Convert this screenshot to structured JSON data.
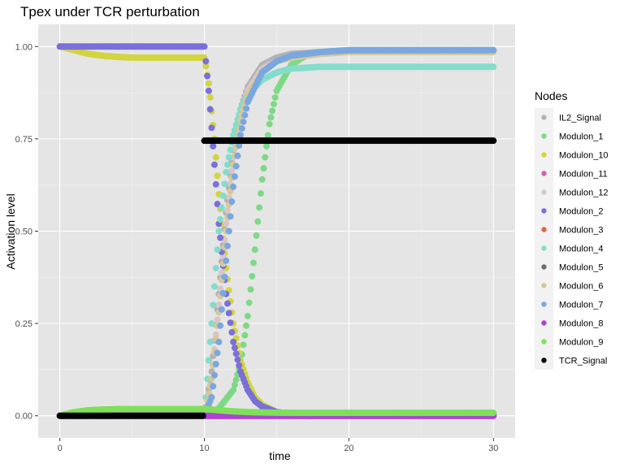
{
  "chart_data": {
    "type": "scatter",
    "title": "Tpex under TCR perturbation",
    "xlabel": "time",
    "ylabel": "Activation level",
    "xlim": [
      -1.5,
      31.5
    ],
    "ylim": [
      -0.06,
      1.06
    ],
    "x_ticks": [
      0,
      10,
      20,
      30
    ],
    "x_tick_labels": [
      "0",
      "10",
      "20",
      "30"
    ],
    "y_ticks": [
      0,
      0.25,
      0.5,
      0.75,
      1.0
    ],
    "y_tick_labels": [
      "0.00",
      "0.25",
      "0.50",
      "0.75",
      "1.00"
    ],
    "grid": true,
    "background": "#e5e5e5",
    "legend": {
      "title": "Nodes",
      "position": "right",
      "entries": [
        "IL2_Signal",
        "Modulon_1",
        "Modulon_10",
        "Modulon_11",
        "Modulon_12",
        "Modulon_2",
        "Modulon_3",
        "Modulon_4",
        "Modulon_5",
        "Modulon_6",
        "Modulon_7",
        "Modulon_8",
        "Modulon_9",
        "TCR_Signal"
      ]
    },
    "series": [
      {
        "name": "IL2_Signal",
        "color": "#b3b3b3",
        "x": [
          0,
          2,
          4,
          6,
          8,
          10,
          10.5,
          11,
          11.5,
          12,
          12.5,
          13,
          14,
          15,
          16,
          18,
          20,
          25,
          30
        ],
        "y": [
          0,
          0,
          0,
          0,
          0,
          0,
          0.12,
          0.33,
          0.55,
          0.72,
          0.83,
          0.89,
          0.95,
          0.97,
          0.98,
          0.985,
          0.99,
          0.99,
          0.99
        ]
      },
      {
        "name": "Modulon_1",
        "color": "#7ed987",
        "x": [
          0,
          2,
          4,
          6,
          8,
          10,
          11,
          12,
          12.5,
          13,
          13.5,
          14,
          14.5,
          15,
          16,
          17,
          18,
          20,
          25,
          30
        ],
        "y": [
          0,
          0,
          0,
          0,
          0,
          0,
          0.02,
          0.07,
          0.14,
          0.27,
          0.45,
          0.64,
          0.79,
          0.88,
          0.95,
          0.975,
          0.985,
          0.99,
          0.99,
          0.99
        ]
      },
      {
        "name": "Modulon_10",
        "color": "#d3d43f",
        "x": [
          0,
          1,
          2,
          3,
          4,
          5,
          6,
          8,
          10,
          10.3,
          10.7,
          11,
          11.5,
          12,
          12.5,
          13,
          13.5,
          14,
          15,
          16,
          20,
          30
        ],
        "y": [
          1,
          0.99,
          0.98,
          0.975,
          0.972,
          0.97,
          0.97,
          0.97,
          0.97,
          0.9,
          0.75,
          0.6,
          0.4,
          0.25,
          0.15,
          0.09,
          0.05,
          0.03,
          0.01,
          0.005,
          0.003,
          0.003
        ]
      },
      {
        "name": "Modulon_11",
        "color": "#cc66aa",
        "x": [
          0,
          5,
          10,
          12,
          15,
          20,
          30
        ],
        "y": [
          0,
          0,
          0,
          0,
          0,
          0,
          0
        ]
      },
      {
        "name": "Modulon_12",
        "color": "#d9c5c8",
        "x": [
          0,
          2,
          4,
          6,
          8,
          10,
          10.5,
          11,
          11.5,
          12,
          12.5,
          13,
          14,
          15,
          16,
          18,
          20,
          25,
          30
        ],
        "y": [
          0,
          0,
          0,
          0,
          0,
          0,
          0.1,
          0.3,
          0.52,
          0.7,
          0.82,
          0.88,
          0.94,
          0.96,
          0.975,
          0.985,
          0.99,
          0.99,
          0.99
        ]
      },
      {
        "name": "Modulon_2",
        "color": "#7b6fd9",
        "x": [
          0,
          2,
          4,
          6,
          8,
          10,
          10.3,
          10.7,
          11,
          11.5,
          12,
          12.5,
          13,
          13.5,
          14,
          15,
          16,
          20,
          30
        ],
        "y": [
          1,
          1,
          1,
          1,
          1,
          1,
          0.88,
          0.68,
          0.52,
          0.33,
          0.2,
          0.12,
          0.07,
          0.04,
          0.025,
          0.01,
          0.005,
          0.002,
          0.002
        ]
      },
      {
        "name": "Modulon_3",
        "color": "#e0644f",
        "x": [
          0,
          5,
          10,
          15,
          20,
          30
        ],
        "y": [
          0,
          0,
          0,
          0,
          0,
          0
        ]
      },
      {
        "name": "Modulon_4",
        "color": "#84dccb",
        "x": [
          0,
          2,
          4,
          6,
          8,
          10,
          10.5,
          11,
          11.5,
          12,
          12.5,
          13,
          14,
          15,
          16,
          18,
          20,
          25,
          30
        ],
        "y": [
          0,
          0,
          0,
          0,
          0,
          0,
          0.25,
          0.5,
          0.66,
          0.76,
          0.83,
          0.87,
          0.91,
          0.93,
          0.94,
          0.945,
          0.945,
          0.945,
          0.945
        ]
      },
      {
        "name": "Modulon_5",
        "color": "#6e6e6e",
        "x": [
          0,
          5,
          10,
          15,
          20,
          30
        ],
        "y": [
          0,
          0,
          0,
          0,
          0,
          0
        ]
      },
      {
        "name": "Modulon_6",
        "color": "#d7c898",
        "x": [
          0,
          2,
          4,
          6,
          8,
          10,
          10.5,
          11,
          11.5,
          12,
          12.5,
          13,
          14,
          15,
          16,
          18,
          20,
          25,
          30
        ],
        "y": [
          0,
          0,
          0,
          0,
          0,
          0,
          0.1,
          0.28,
          0.5,
          0.68,
          0.8,
          0.87,
          0.93,
          0.96,
          0.97,
          0.98,
          0.985,
          0.985,
          0.985
        ]
      },
      {
        "name": "Modulon_7",
        "color": "#7aa7e0",
        "x": [
          0,
          2,
          4,
          6,
          8,
          10,
          10.5,
          11,
          11.5,
          12,
          12.5,
          13,
          14,
          15,
          16,
          18,
          20,
          25,
          30
        ],
        "y": [
          0,
          0,
          0,
          0,
          0,
          0,
          0.05,
          0.2,
          0.42,
          0.62,
          0.76,
          0.85,
          0.93,
          0.96,
          0.975,
          0.985,
          0.99,
          0.99,
          0.99
        ]
      },
      {
        "name": "Modulon_8",
        "color": "#b040d8",
        "x": [
          0,
          2,
          4,
          6,
          8,
          10,
          11,
          12,
          14,
          16,
          20,
          30
        ],
        "y": [
          0,
          0,
          0,
          0,
          0,
          0,
          0,
          0,
          0,
          0,
          0,
          0
        ]
      },
      {
        "name": "Modulon_9",
        "color": "#7fe05a",
        "x": [
          0,
          1,
          2,
          3,
          4,
          6,
          8,
          10,
          11,
          12,
          13,
          14,
          16,
          20,
          25,
          30
        ],
        "y": [
          0,
          0.01,
          0.015,
          0.017,
          0.018,
          0.018,
          0.018,
          0.018,
          0.015,
          0.012,
          0.01,
          0.009,
          0.008,
          0.008,
          0.008,
          0.008
        ]
      },
      {
        "name": "TCR_Signal",
        "color": "#000000",
        "x": [
          0,
          2,
          4,
          6,
          8,
          9.9,
          10,
          12,
          15,
          20,
          25,
          30
        ],
        "y": [
          0,
          0,
          0,
          0,
          0,
          0,
          0.745,
          0.745,
          0.745,
          0.745,
          0.745,
          0.745
        ]
      }
    ]
  }
}
